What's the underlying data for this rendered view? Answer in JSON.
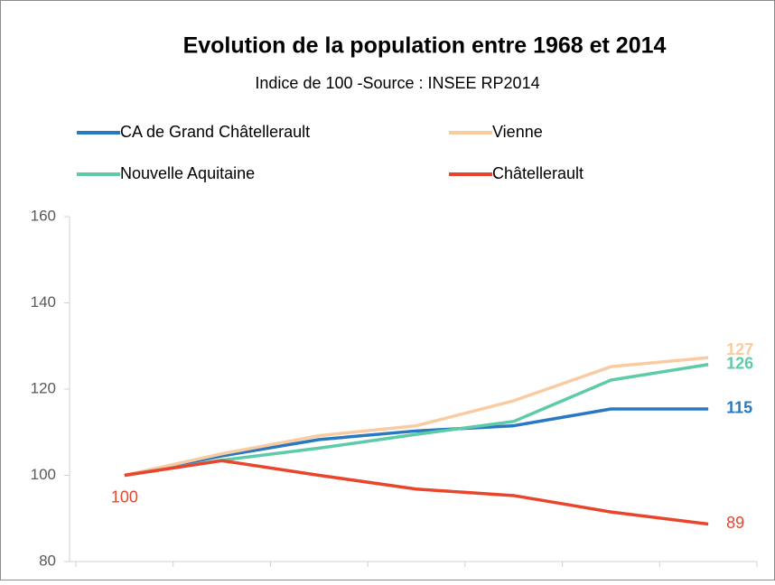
{
  "chart_data": {
    "type": "line",
    "title": "Evolution de la population entre 1968 et 2014",
    "subtitle": "Indice de 100 -Source : INSEE RP2014",
    "categories": [
      null,
      null,
      null,
      null,
      null,
      null,
      null
    ],
    "series": [
      {
        "name": "CA de Grand Châtellerault",
        "color": "#2a78c2",
        "values": [
          100,
          104.5,
          108.3,
          110.3,
          111.5,
          115.4,
          115.4
        ],
        "value_labels": [
          null,
          null,
          null,
          null,
          null,
          null,
          "115"
        ]
      },
      {
        "name": "Vienne",
        "color": "#f9cba0",
        "values": [
          100,
          105,
          109.2,
          111.5,
          117.3,
          125.2,
          127.3
        ],
        "value_labels": [
          null,
          null,
          null,
          null,
          null,
          null,
          "127"
        ]
      },
      {
        "name": "Nouvelle Aquitaine",
        "color": "#5ecba8",
        "values": [
          100,
          103.5,
          106.3,
          109.5,
          112.5,
          122.1,
          125.7
        ],
        "value_labels": [
          null,
          null,
          null,
          null,
          null,
          null,
          "126"
        ]
      },
      {
        "name": "Châtellerault",
        "color": "#e8452c",
        "values": [
          100,
          103.4,
          100,
          96.8,
          95.3,
          91.5,
          88.7
        ],
        "value_labels": [
          "100",
          null,
          null,
          null,
          null,
          null,
          "89"
        ]
      }
    ],
    "ylim": [
      80,
      160
    ],
    "yticks": [
      80,
      100,
      120,
      140,
      160
    ],
    "grid": false
  }
}
